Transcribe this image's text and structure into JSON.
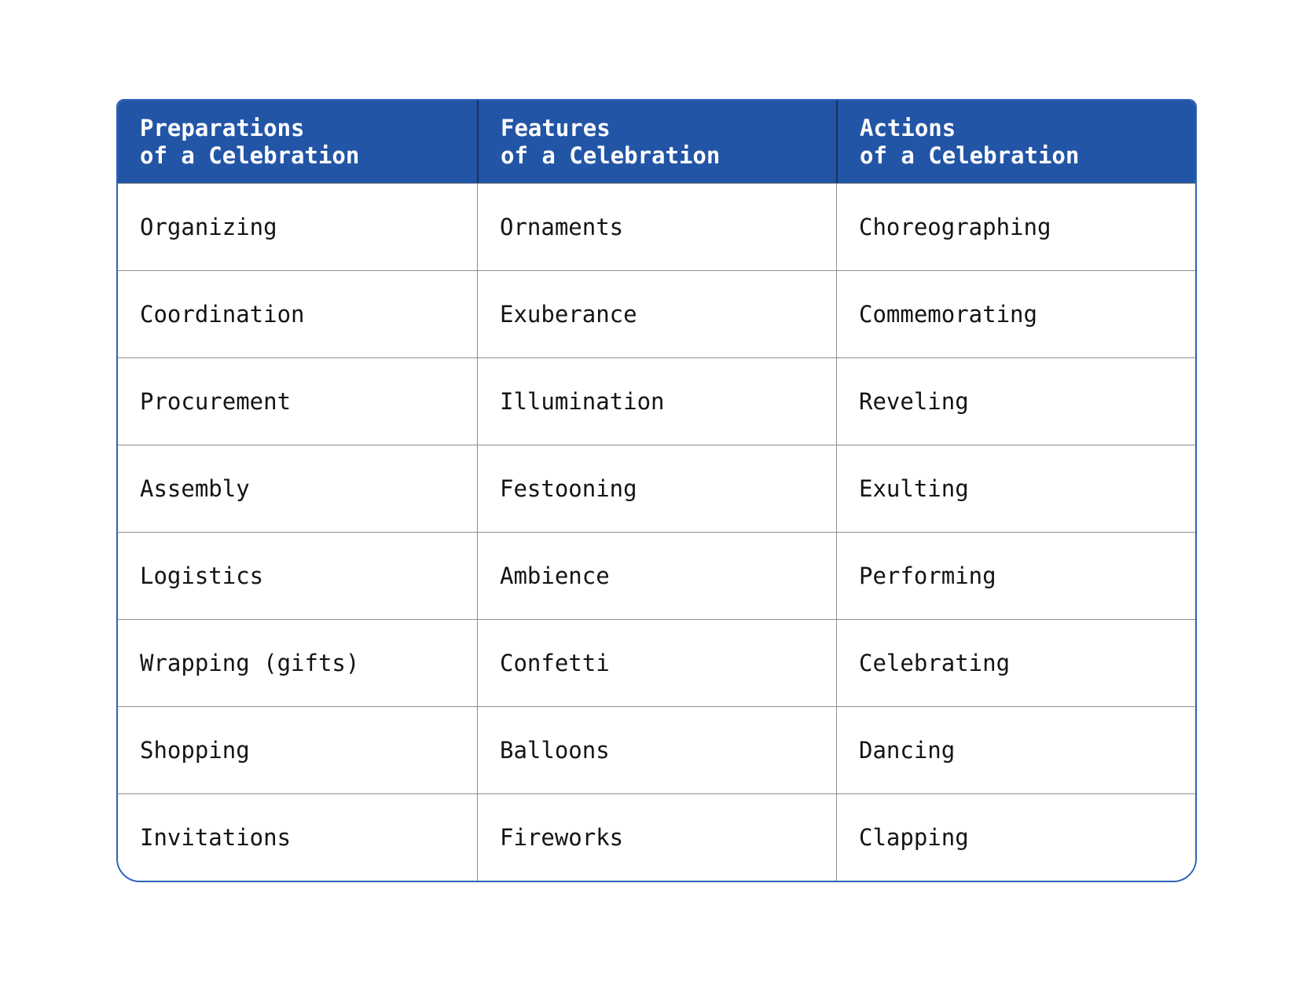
{
  "colors": {
    "header_bg": "#2355a6",
    "header_text": "#ffffff",
    "outer_border": "#2e62b8",
    "grid_line": "#8f8f8f",
    "header_divider": "#16305e",
    "cell_text": "#141414",
    "page_bg": "#ffffff"
  },
  "table": {
    "headers": [
      "Preparations\nof a Celebration",
      "Features\nof a Celebration",
      "Actions\nof a Celebration"
    ],
    "rows": [
      [
        "Organizing",
        "Ornaments",
        "Choreographing"
      ],
      [
        "Coordination",
        "Exuberance",
        "Commemorating"
      ],
      [
        "Procurement",
        "Illumination",
        "Reveling"
      ],
      [
        "Assembly",
        "Festooning",
        "Exulting"
      ],
      [
        "Logistics",
        "Ambience",
        "Performing"
      ],
      [
        "Wrapping (gifts)",
        "Confetti",
        "Celebrating"
      ],
      [
        "Shopping",
        "Balloons",
        "Dancing"
      ],
      [
        "Invitations",
        "Fireworks",
        "Clapping"
      ]
    ]
  }
}
